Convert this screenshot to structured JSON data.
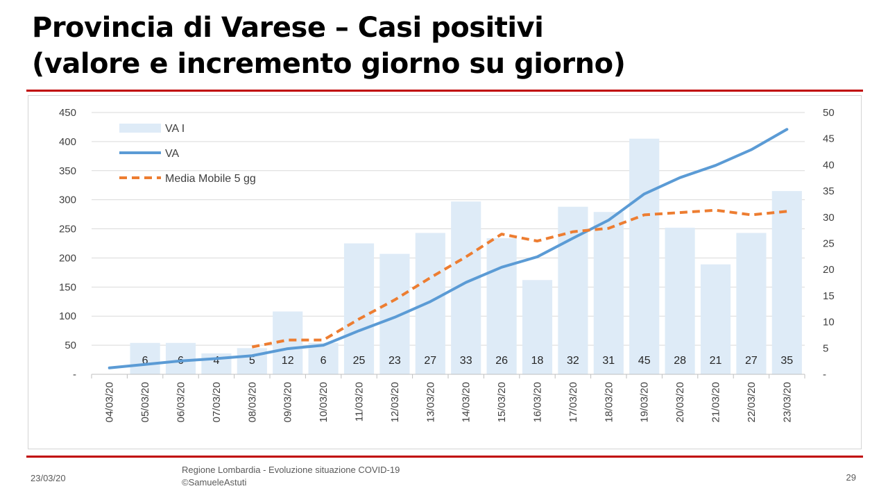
{
  "title": {
    "line1": "Provincia di Varese – Casi positivi",
    "line2": "(valore e incremento giorno su giorno)"
  },
  "colors": {
    "accent_rule": "#c00000",
    "bars": "#deebf7",
    "line_va": "#5b9bd5",
    "line_mm": "#ed7d31",
    "axis_text": "#404040",
    "grid": "#d9d9d9"
  },
  "chart_data": {
    "type": "bar",
    "categories": [
      "04/03/20",
      "05/03/20",
      "06/03/20",
      "07/03/20",
      "08/03/20",
      "09/03/20",
      "10/03/20",
      "11/03/20",
      "12/03/20",
      "13/03/20",
      "14/03/20",
      "15/03/20",
      "16/03/20",
      "17/03/20",
      "18/03/20",
      "19/03/20",
      "20/03/20",
      "21/03/20",
      "22/03/20",
      "23/03/20"
    ],
    "y_left_ticks": [
      "450",
      "400",
      "350",
      "300",
      "250",
      "200",
      "150",
      "100",
      "50",
      "-"
    ],
    "y_right_ticks": [
      "50",
      "45",
      "40",
      "35",
      "30",
      "25",
      "20",
      "15",
      "10",
      "5",
      "-"
    ],
    "ylim_left": [
      0,
      450
    ],
    "ylim_right": [
      0,
      50
    ],
    "grid": true,
    "legend_position": "top-left",
    "series": [
      {
        "name": "VA I",
        "type": "bar",
        "axis": "right",
        "values": [
          null,
          6,
          6,
          4,
          5,
          12,
          6,
          25,
          23,
          27,
          33,
          26,
          18,
          32,
          31,
          45,
          28,
          21,
          27,
          35
        ],
        "data_labels": [
          "",
          "6",
          "6",
          "4",
          "5",
          "12",
          "6",
          "25",
          "23",
          "27",
          "33",
          "26",
          "18",
          "32",
          "31",
          "45",
          "28",
          "21",
          "27",
          "35"
        ]
      },
      {
        "name": "VA",
        "type": "line",
        "axis": "left",
        "values": [
          11,
          17,
          23,
          27,
          32,
          44,
          50,
          75,
          98,
          125,
          158,
          184,
          202,
          234,
          265,
          310,
          338,
          359,
          386,
          421
        ]
      },
      {
        "name": "Media Mobile 5 gg",
        "type": "line",
        "style": "dashed",
        "axis": "left",
        "values": [
          null,
          null,
          null,
          null,
          47,
          59,
          59,
          95,
          128,
          166,
          202,
          241,
          229,
          245,
          251,
          274,
          278,
          282,
          274,
          280
        ]
      }
    ]
  },
  "footer": {
    "date": "23/03/20",
    "source_line1": "Regione Lombardia - Evoluzione situazione COVID-19",
    "source_line2": "©SamueleAstuti",
    "page": "29"
  }
}
